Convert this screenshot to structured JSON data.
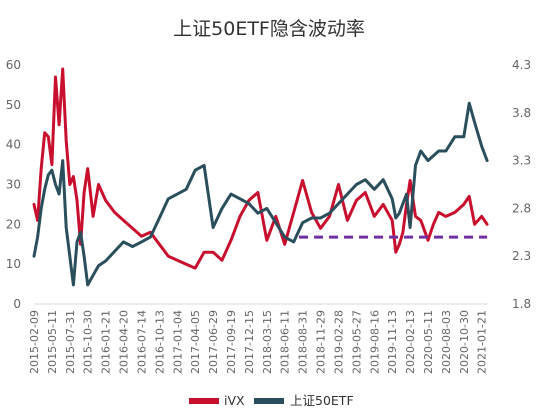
{
  "chart_data": {
    "type": "line",
    "title": "上证50ETF隐含波动率",
    "x_tick_labels": [
      "2015-02-09",
      "2015-05-11",
      "2015-07-31",
      "2015-10-30",
      "2016-01-21",
      "2016-04-20",
      "2016-07-14",
      "2016-10-13",
      "2017-01-04",
      "2017-04-05",
      "2017-06-29",
      "2017-09-19",
      "2017-12-15",
      "2018-03-15",
      "2018-06-11",
      "2018-08-31",
      "2018-11-29",
      "2019-02-28",
      "2019-05-27",
      "2019-08-16",
      "2019-11-13",
      "2020-02-13",
      "2020-05-11",
      "2020-08-03",
      "2020-10-30",
      "2021-01-21"
    ],
    "y_left": {
      "ticks": [
        "0",
        "10",
        "20",
        "30",
        "40",
        "50",
        "60"
      ],
      "lim": [
        0,
        60
      ]
    },
    "y_right": {
      "ticks": [
        "1.8",
        "2.3",
        "2.8",
        "3.3",
        "3.8",
        "4.3"
      ],
      "lim": [
        1.8,
        4.3
      ]
    },
    "legend_position": "bottom",
    "colors": {
      "ivx": "#c8102e",
      "etf": "#2a4e5c",
      "dashed": "#7030a0"
    },
    "series": [
      {
        "name": "iVX",
        "axis": "left",
        "x": [
          0,
          0.2,
          0.4,
          0.6,
          0.8,
          1,
          1.2,
          1.4,
          1.6,
          1.8,
          2,
          2.2,
          2.4,
          2.6,
          2.8,
          3,
          3.3,
          3.6,
          4,
          4.5,
          5,
          5.5,
          6,
          6.5,
          7,
          7.5,
          8,
          8.5,
          9,
          9.5,
          10,
          10.5,
          11,
          11.5,
          12,
          12.5,
          13,
          13.5,
          14,
          14.5,
          15,
          15.5,
          16,
          16.5,
          17,
          17.5,
          18,
          18.5,
          19,
          19.5,
          20,
          20.2,
          20.4,
          20.6,
          20.8,
          21,
          21.3,
          21.6,
          22,
          22.3,
          22.6,
          23,
          23.5,
          24,
          24.3,
          24.6,
          25,
          25.3
        ],
        "values": [
          25,
          21,
          34,
          43,
          42,
          35,
          57,
          45,
          59,
          41,
          30,
          32,
          26,
          15,
          28,
          34,
          22,
          30,
          26,
          23,
          21,
          19,
          17,
          18,
          15,
          12,
          11,
          10,
          9,
          13,
          13,
          11,
          16,
          22,
          26,
          28,
          16,
          22,
          15,
          23,
          31,
          23,
          19,
          22,
          30,
          21,
          26,
          28,
          22,
          25,
          21,
          13,
          15,
          18,
          25,
          31,
          22,
          21,
          16,
          20,
          23,
          22,
          23,
          25,
          27,
          20,
          22,
          20
        ]
      },
      {
        "name": "上证50ETF",
        "axis": "right",
        "x": [
          0,
          0.2,
          0.4,
          0.6,
          0.8,
          1,
          1.2,
          1.4,
          1.6,
          1.8,
          2,
          2.2,
          2.4,
          2.6,
          2.8,
          3,
          3.3,
          3.6,
          4,
          4.5,
          5,
          5.5,
          6,
          6.5,
          7,
          7.5,
          8,
          8.5,
          9,
          9.5,
          10,
          10.5,
          11,
          11.5,
          12,
          12.5,
          13,
          13.5,
          14,
          14.5,
          15,
          15.5,
          16,
          16.5,
          17,
          17.5,
          18,
          18.5,
          19,
          19.5,
          20,
          20.2,
          20.4,
          20.6,
          20.8,
          21,
          21.3,
          21.6,
          22,
          22.3,
          22.6,
          23,
          23.5,
          24,
          24.3,
          24.6,
          25,
          25.3
        ],
        "values": [
          2.3,
          2.5,
          2.8,
          3.0,
          3.15,
          3.2,
          3.05,
          2.95,
          3.3,
          2.6,
          2.3,
          2.0,
          2.45,
          2.55,
          2.3,
          2.0,
          2.1,
          2.2,
          2.25,
          2.35,
          2.45,
          2.4,
          2.45,
          2.5,
          2.7,
          2.9,
          2.95,
          3.0,
          3.2,
          3.25,
          2.6,
          2.8,
          2.95,
          2.9,
          2.85,
          2.75,
          2.8,
          2.65,
          2.5,
          2.45,
          2.65,
          2.7,
          2.7,
          2.75,
          2.85,
          2.95,
          3.05,
          3.1,
          3.0,
          3.1,
          2.9,
          2.7,
          2.75,
          2.85,
          2.95,
          2.6,
          3.25,
          3.4,
          3.3,
          3.35,
          3.4,
          3.4,
          3.55,
          3.55,
          3.9,
          3.7,
          3.45,
          3.3
        ]
      }
    ],
    "reference_line": {
      "style": "dashed",
      "axis": "right",
      "value": 2.5,
      "x_start": 14.8,
      "x_end": 25.3
    }
  }
}
